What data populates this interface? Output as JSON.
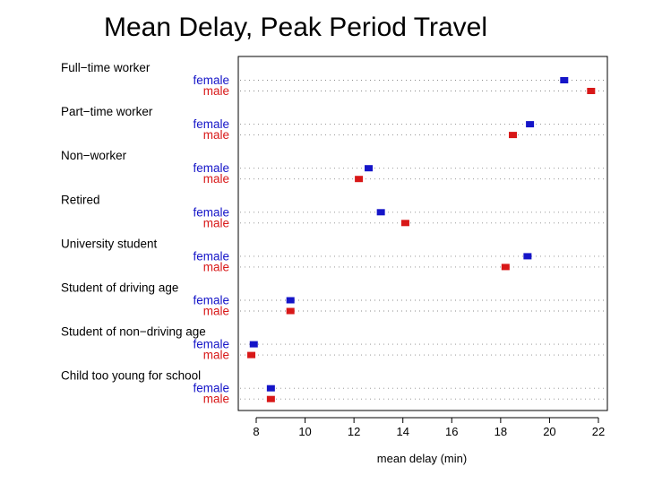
{
  "slide": {
    "title": "Mean Delay, Peak Period Travel"
  },
  "chart_data": {
    "type": "scatter",
    "title": "Mean Delay, Peak Period Travel",
    "xlabel": "mean delay (min)",
    "ylabel": "",
    "xlim": [
      7.2,
      22.3
    ],
    "x_ticks": [
      "8",
      "10",
      "12",
      "14",
      "16",
      "18",
      "20",
      "22"
    ],
    "grid": "dotted horizontal guide per row",
    "colors": {
      "female": "#1515c8",
      "male": "#d81818"
    },
    "series": [
      {
        "name": "female"
      },
      {
        "name": "male"
      }
    ],
    "groups": [
      {
        "label": "Full−time worker",
        "female": 20.6,
        "male": 21.7
      },
      {
        "label": "Part−time worker",
        "female": 19.2,
        "male": 18.5
      },
      {
        "label": "Non−worker",
        "female": 12.6,
        "male": 12.2
      },
      {
        "label": "Retired",
        "female": 13.1,
        "male": 14.1
      },
      {
        "label": "University student",
        "female": 19.1,
        "male": 18.2
      },
      {
        "label": "Student of driving age",
        "female": 9.4,
        "male": 9.4
      },
      {
        "label": "Student of non−driving age",
        "female": 7.9,
        "male": 7.8
      },
      {
        "label": "Child too young for school",
        "female": 8.6,
        "male": 8.6
      }
    ]
  }
}
